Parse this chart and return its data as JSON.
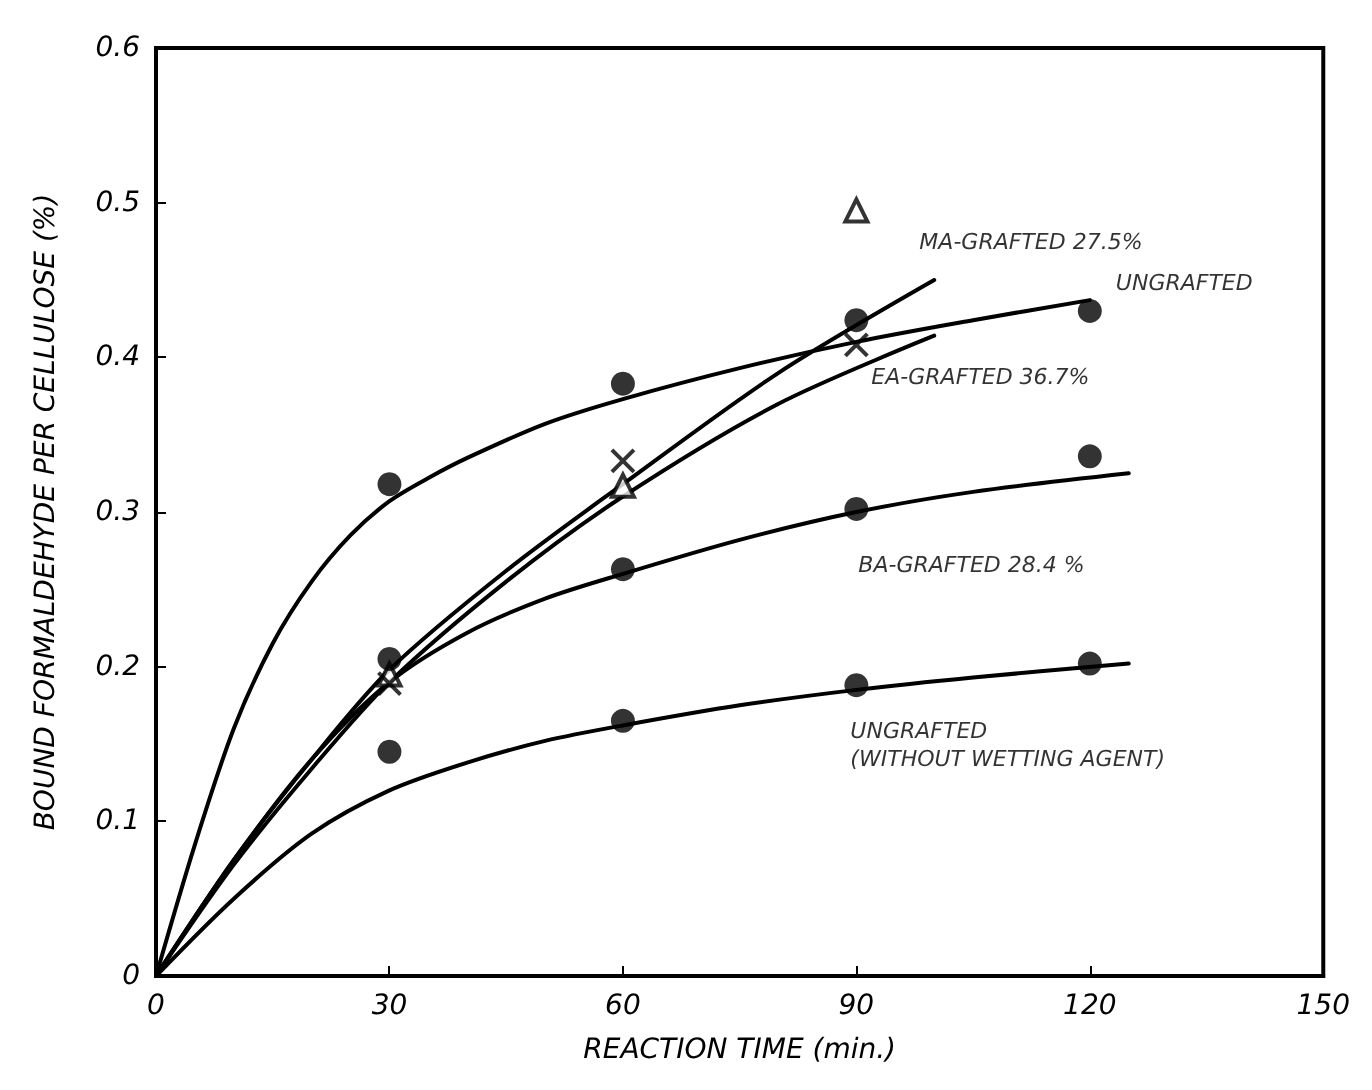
{
  "chart_data": {
    "type": "scatter",
    "xlabel": "REACTION TIME (min.)",
    "ylabel": "BOUND FORMALDEHYDE PER CELLULOSE (%)",
    "xlim": [
      0,
      150
    ],
    "xticks": [
      0,
      30,
      60,
      90,
      120,
      150
    ],
    "ylim": [
      0,
      0.6
    ],
    "yticks": [
      0,
      0.1,
      0.2,
      0.3,
      0.4,
      0.5,
      0.6
    ],
    "grid": false,
    "legend": false,
    "series": [
      {
        "name": "MA-GRAFTED 27.5%",
        "marker": "triangle",
        "color": "#000000",
        "x": [
          30,
          60,
          90
        ],
        "values": [
          0.195,
          0.317,
          0.495
        ]
      },
      {
        "type": "line",
        "color": "#000000",
        "x": [
          0,
          10,
          20,
          30,
          45,
          60,
          80,
          100
        ],
        "values": [
          0,
          0.075,
          0.14,
          0.198,
          0.262,
          0.318,
          0.39,
          0.45
        ]
      },
      {
        "name": "UNGRAFTED",
        "marker": "circle",
        "color": "#000000",
        "x": [
          30,
          60,
          90,
          120
        ],
        "values": [
          0.318,
          0.383,
          0.424,
          0.43
        ]
      },
      {
        "type": "line",
        "color": "#000000",
        "x": [
          0,
          5,
          10,
          15,
          20,
          25,
          30,
          35,
          40,
          50,
          60,
          75,
          90,
          105,
          120
        ],
        "values": [
          0,
          0.085,
          0.16,
          0.215,
          0.255,
          0.285,
          0.307,
          0.322,
          0.335,
          0.357,
          0.373,
          0.393,
          0.41,
          0.424,
          0.437
        ]
      },
      {
        "name": "EA-GRAFTED 36.7%",
        "marker": "cross",
        "color": "#000000",
        "x": [
          30,
          60,
          90
        ],
        "values": [
          0.189,
          0.333,
          0.408
        ]
      },
      {
        "type": "line",
        "color": "#000000",
        "x": [
          0,
          10,
          20,
          30,
          45,
          60,
          80,
          100
        ],
        "values": [
          0,
          0.072,
          0.134,
          0.19,
          0.255,
          0.31,
          0.37,
          0.414
        ]
      },
      {
        "name": "BA-GRAFTED 28.4 %",
        "marker": "circle",
        "color": "#000000",
        "x": [
          30,
          60,
          90,
          120
        ],
        "values": [
          0.205,
          0.263,
          0.302,
          0.336
        ]
      },
      {
        "type": "line",
        "color": "#000000",
        "x": [
          0,
          10,
          20,
          30,
          40,
          50,
          60,
          75,
          90,
          105,
          125
        ],
        "values": [
          0,
          0.075,
          0.14,
          0.19,
          0.222,
          0.244,
          0.26,
          0.282,
          0.3,
          0.313,
          0.325
        ]
      },
      {
        "name": "UNGRAFTED\n(WITHOUT WETTING AGENT)",
        "marker": "circle",
        "color": "#000000",
        "x": [
          30,
          60,
          90,
          120
        ],
        "values": [
          0.145,
          0.165,
          0.188,
          0.202
        ]
      },
      {
        "type": "line",
        "color": "#000000",
        "x": [
          0,
          10,
          20,
          30,
          40,
          50,
          60,
          75,
          90,
          105,
          125
        ],
        "values": [
          0,
          0.05,
          0.092,
          0.12,
          0.138,
          0.152,
          0.162,
          0.175,
          0.185,
          0.193,
          0.202
        ]
      }
    ]
  }
}
